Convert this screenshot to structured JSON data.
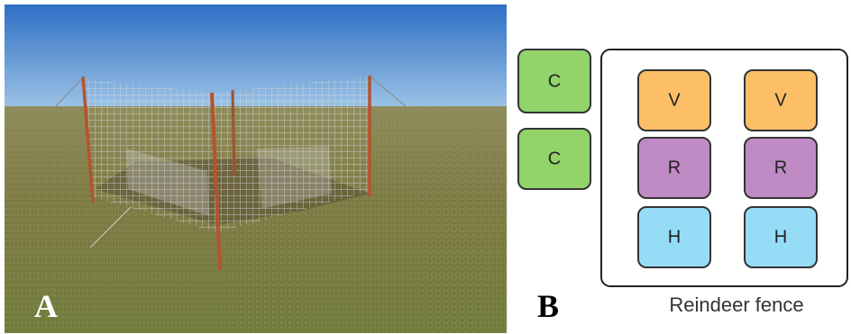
{
  "photo_label": "A",
  "diagram": {
    "label": "B",
    "control_plots": [
      "C",
      "C"
    ],
    "fenced_plots": [
      [
        "V",
        "V"
      ],
      [
        "R",
        "R"
      ],
      [
        "H",
        "H"
      ]
    ],
    "fence_label": "Reindeer fence"
  }
}
